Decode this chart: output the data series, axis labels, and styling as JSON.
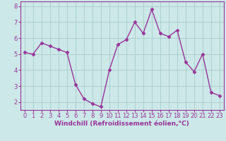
{
  "x": [
    0,
    1,
    2,
    3,
    4,
    5,
    6,
    7,
    8,
    9,
    10,
    11,
    12,
    13,
    14,
    15,
    16,
    17,
    18,
    19,
    20,
    21,
    22,
    23
  ],
  "y": [
    5.1,
    5.0,
    5.7,
    5.5,
    5.3,
    5.1,
    3.1,
    2.2,
    1.9,
    1.7,
    4.0,
    5.6,
    5.9,
    7.0,
    6.3,
    7.8,
    6.3,
    6.1,
    6.5,
    4.5,
    3.9,
    5.0,
    2.6,
    2.4
  ],
  "line_color": "#993399",
  "marker": "D",
  "marker_size": 2.5,
  "bg_color": "#cce8e8",
  "grid_color": "#aacccc",
  "xlabel": "Windchill (Refroidissement éolien,°C)",
  "xlabel_color": "#993399",
  "xlabel_fontsize": 6.5,
  "tick_color": "#993399",
  "tick_fontsize": 6,
  "ylim": [
    1.5,
    8.3
  ],
  "yticks": [
    2,
    3,
    4,
    5,
    6,
    7,
    8
  ],
  "xlim": [
    -0.5,
    23.5
  ],
  "xticks": [
    0,
    1,
    2,
    3,
    4,
    5,
    6,
    7,
    8,
    9,
    10,
    11,
    12,
    13,
    14,
    15,
    16,
    17,
    18,
    19,
    20,
    21,
    22,
    23
  ],
  "spine_color": "#993399",
  "linewidth": 1.0
}
